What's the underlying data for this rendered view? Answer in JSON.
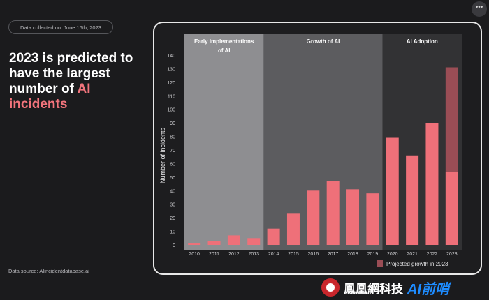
{
  "header": {
    "date_label": "Data collected on: June 16th, 2023",
    "headline_pre": "2023 is predicted to have the largest number of ",
    "headline_accent": "AI incidents"
  },
  "footer": {
    "source": "Data source: AIincidentdatabase.ai"
  },
  "watermark": {
    "text": "鳳凰網科技",
    "brand": "AI前哨"
  },
  "chart_data": {
    "type": "bar",
    "title": "",
    "xlabel": "",
    "ylabel": "Number of incidents",
    "ylim": [
      0,
      140
    ],
    "yticks": [
      0,
      10,
      20,
      30,
      40,
      50,
      60,
      70,
      80,
      90,
      100,
      110,
      120,
      130,
      140
    ],
    "grid": false,
    "legend_position": "bottom-right",
    "categories": [
      "2010",
      "2011",
      "2012",
      "2013",
      "2014",
      "2015",
      "2016",
      "2017",
      "2018",
      "2019",
      "2020",
      "2021",
      "2022",
      "2023"
    ],
    "series": [
      {
        "name": "",
        "color": "#ef7079",
        "values": [
          1,
          3,
          7,
          5,
          12,
          23,
          40,
          47,
          41,
          38,
          79,
          66,
          90,
          54
        ]
      },
      {
        "name": "Projected growth in 2023",
        "color": "#9a4d55",
        "values": [
          0,
          0,
          0,
          0,
          0,
          0,
          0,
          0,
          0,
          0,
          0,
          0,
          0,
          77
        ]
      }
    ],
    "periods": [
      {
        "label_lines": [
          "Early implementations",
          "of AI"
        ],
        "from": "2010",
        "to": "2013",
        "color": "#8e8e91"
      },
      {
        "label_lines": [
          "Growth of AI"
        ],
        "from": "2014",
        "to": "2019",
        "color": "#5c5c5f"
      },
      {
        "label_lines": [
          "AI Adoption"
        ],
        "from": "2020",
        "to": "2023",
        "color": "#323234"
      }
    ]
  }
}
